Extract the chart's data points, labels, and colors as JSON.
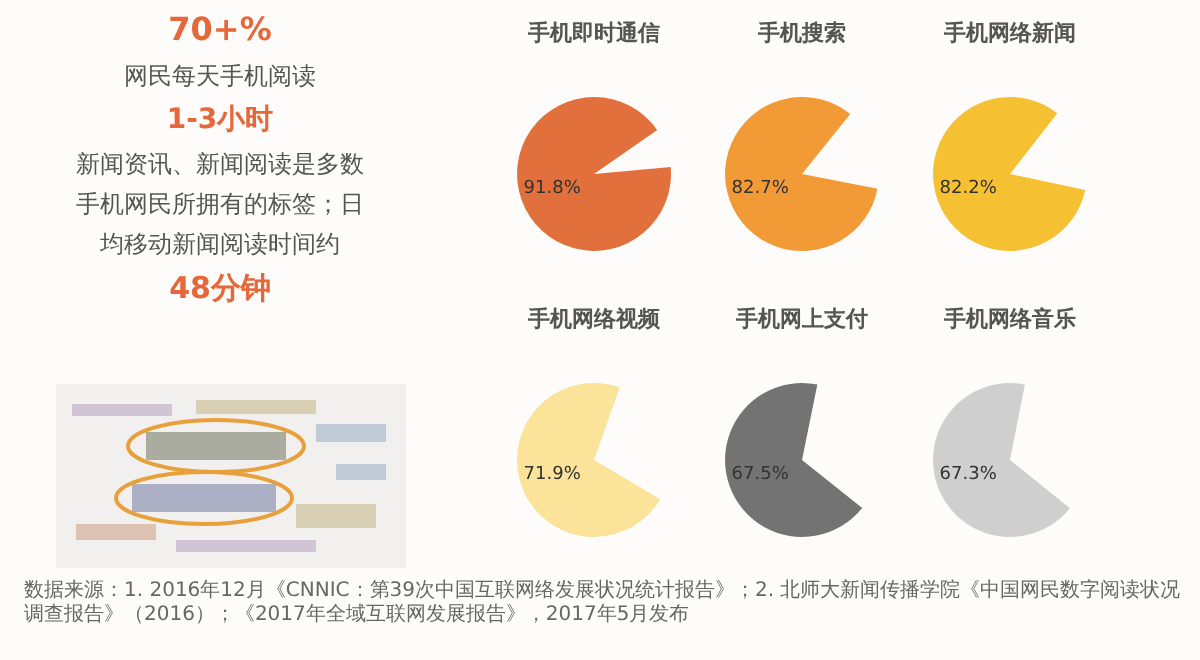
{
  "chart_data": [
    {
      "type": "other",
      "annotations": [
        "70+%",
        "网民每天手机阅读",
        "1-3小时",
        "新闻资讯、新闻阅读是多数手机网民所拥有的标签；日均移动新闻阅读时间约",
        "48分钟",
        "数据来源：1. 2016年12月《CNNIC：第39次中国互联网络发展状况统计报告》；2. 北师大新闻传播学院《中国网民数字阅读状况调查报告》（2016）；《2017年全域互联网发展报告》，2017年5月发布"
      ]
    },
    {
      "type": "pie",
      "title": "手机即时通信",
      "categories": [
        null
      ],
      "values": [
        91.8
      ],
      "colors": [
        "#e2703c"
      ],
      "value_labels": [
        "91.8%"
      ]
    },
    {
      "type": "pie",
      "title": "手机搜索",
      "categories": [
        null
      ],
      "values": [
        82.7
      ],
      "colors": [
        "#f19a36"
      ],
      "value_labels": [
        "82.7%"
      ]
    },
    {
      "type": "pie",
      "title": "手机网络新闻",
      "categories": [
        null
      ],
      "values": [
        82.2
      ],
      "colors": [
        "#f5c032"
      ],
      "value_labels": [
        "82.2%"
      ]
    },
    {
      "type": "pie",
      "title": "手机网络视频",
      "categories": [
        null
      ],
      "values": [
        71.9
      ],
      "colors": [
        "#fbe39a"
      ],
      "value_labels": [
        "71.9%"
      ]
    },
    {
      "type": "pie",
      "title": "手机网上支付",
      "categories": [
        null
      ],
      "values": [
        67.5
      ],
      "colors": [
        "#737373"
      ],
      "value_labels": [
        "67.5%"
      ]
    },
    {
      "type": "pie",
      "title": "手机网络音乐",
      "categories": [
        null
      ],
      "values": [
        67.3
      ],
      "colors": [
        "#cfcfcf"
      ],
      "value_labels": [
        "67.3%"
      ]
    }
  ]
}
